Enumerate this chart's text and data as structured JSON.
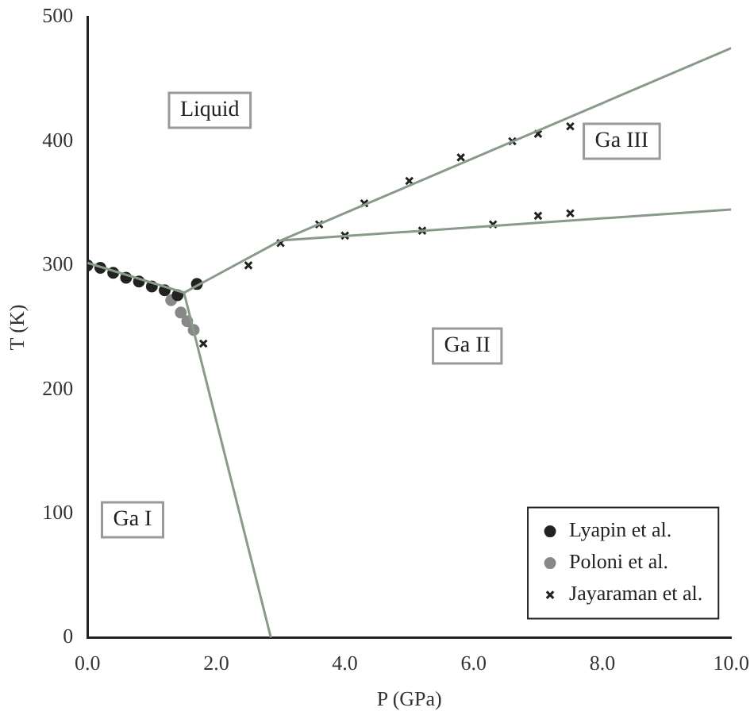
{
  "chart_data": {
    "type": "scatter",
    "xlabel": "P (GPa)",
    "ylabel": "T (K)",
    "xlim": [
      0,
      10
    ],
    "ylim": [
      0,
      500
    ],
    "xticks": [
      {
        "value": 0,
        "label": "0.0"
      },
      {
        "value": 2,
        "label": "2.0"
      },
      {
        "value": 4,
        "label": "4.0"
      },
      {
        "value": 6,
        "label": "6.0"
      },
      {
        "value": 8,
        "label": "8.0"
      },
      {
        "value": 10,
        "label": "10.0"
      }
    ],
    "yticks": [
      0,
      100,
      200,
      300,
      400,
      500
    ],
    "grid": false,
    "legend": "bottom right",
    "series": [
      {
        "type": "line",
        "color": "#8a9a8a",
        "x": [
          0,
          1.5
        ],
        "values": [
          302,
          278
        ]
      },
      {
        "type": "line",
        "color": "#8a9a8a",
        "x": [
          1.5,
          3.0
        ],
        "values": [
          278,
          320
        ]
      },
      {
        "type": "line",
        "color": "#8a9a8a",
        "x": [
          3.0,
          10
        ],
        "values": [
          320,
          475
        ]
      },
      {
        "type": "line",
        "color": "#8a9a8a",
        "x": [
          3.0,
          10
        ],
        "values": [
          320,
          345
        ]
      },
      {
        "type": "line",
        "color": "#8a9a8a",
        "x": [
          1.5,
          2.85
        ],
        "values": [
          278,
          0
        ]
      },
      {
        "name": "Lyapin et al.",
        "marker": "circle",
        "color": "#222222",
        "x": [
          0,
          0.2,
          0.4,
          0.6,
          0.8,
          1.0,
          1.2,
          1.4,
          1.7
        ],
        "values": [
          300,
          298,
          294,
          290,
          287,
          283,
          280,
          276,
          285
        ]
      },
      {
        "name": "Poloni et al.",
        "marker": "circle",
        "color": "#888888",
        "x": [
          1.3,
          1.45,
          1.55,
          1.65
        ],
        "values": [
          272,
          262,
          255,
          248
        ]
      },
      {
        "name": "Jayaraman et al.",
        "marker": "cross",
        "color": "#222222",
        "x": [
          1.8,
          2.5,
          3.0,
          3.6,
          4.3,
          5.0,
          5.8,
          6.6,
          7.0,
          7.5,
          4.0,
          5.2,
          6.3,
          7.0,
          7.5
        ],
        "values": [
          237,
          300,
          318,
          333,
          350,
          368,
          387,
          400,
          406,
          412,
          324,
          328,
          333,
          340,
          342
        ]
      }
    ],
    "annotations": [
      "Liquid",
      "Ga III",
      "Ga II",
      "Ga I"
    ]
  }
}
